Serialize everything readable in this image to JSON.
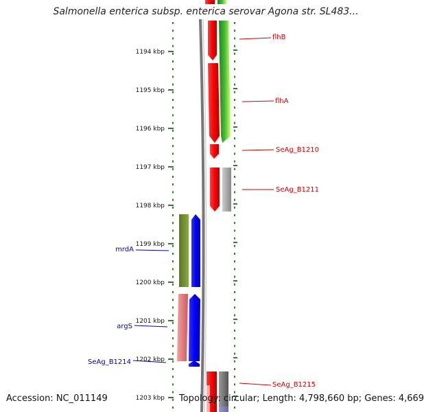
{
  "title": "Salmonella enterica subsp. enterica serovar Agona str. SL483...",
  "footer": {
    "accession": "Accession: NC_011149",
    "topology": "Topology: circular; Length: 4,798,660 bp; Genes: 4,669"
  },
  "ruler": {
    "ticks": [
      "1194 kbp",
      "1195 kbp",
      "1196 kbp",
      "1197 kbp",
      "1198 kbp",
      "1199 kbp",
      "1200 kbp",
      "1201 kbp",
      "1202 kbp",
      "1203 kbp"
    ]
  },
  "genes": {
    "plus": [
      {
        "label": "flhB",
        "color": "#cc0000"
      },
      {
        "label": "flhA",
        "color": "#cc0000"
      },
      {
        "label": "SeAg_B1210",
        "color": "#cc0000"
      },
      {
        "label": "SeAg_B1211",
        "color": "#cc0000"
      },
      {
        "label": "SeAg_B1215",
        "color": "#cc0000"
      }
    ],
    "minus": [
      {
        "label": "mrdA",
        "color": "#0000bb"
      },
      {
        "label": "argS",
        "color": "#0000bb"
      },
      {
        "label": "SeAg_B1214",
        "color": "#0000bb"
      }
    ]
  },
  "colors": {
    "plus_gene": "#ff0000",
    "minus_gene": "#0000ff",
    "backbone": "#777777",
    "tick": "#2e7d32"
  }
}
